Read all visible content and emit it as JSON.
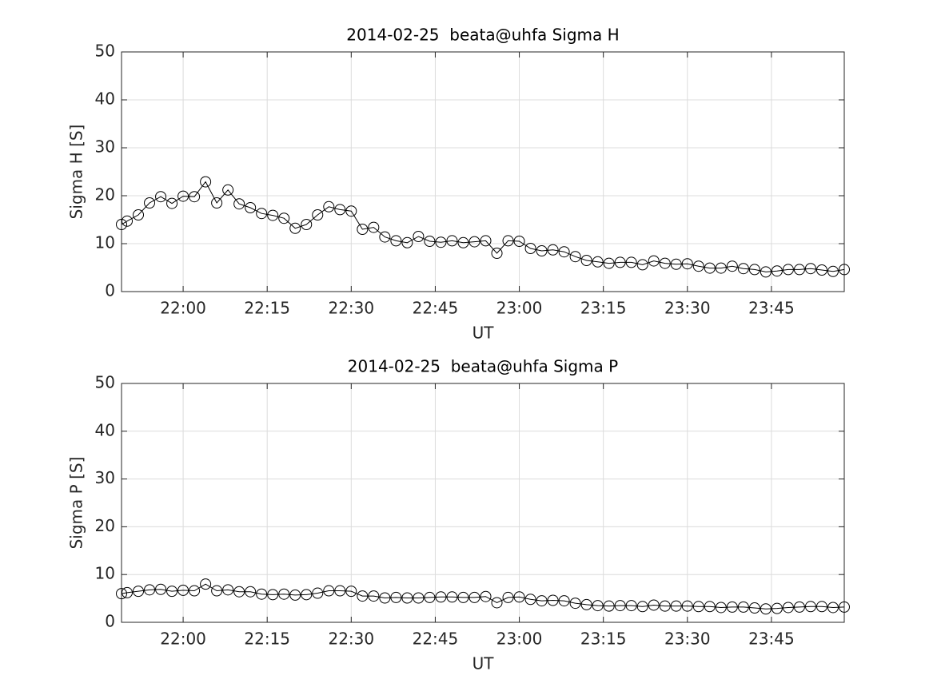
{
  "chart_data": [
    {
      "type": "line",
      "title": "2014-02-25  beata@uhfa Sigma H",
      "ylabel": "Sigma H [S]",
      "xlabel": "UT",
      "x": [
        "21:49",
        "21:50",
        "21:52",
        "21:54",
        "21:56",
        "21:58",
        "22:00",
        "22:02",
        "22:04",
        "22:06",
        "22:08",
        "22:10",
        "22:12",
        "22:14",
        "22:16",
        "22:18",
        "22:20",
        "22:22",
        "22:24",
        "22:26",
        "22:28",
        "22:30",
        "22:32",
        "22:34",
        "22:36",
        "22:38",
        "22:40",
        "22:42",
        "22:44",
        "22:46",
        "22:48",
        "22:50",
        "22:52",
        "22:54",
        "22:56",
        "22:58",
        "23:00",
        "23:02",
        "23:04",
        "23:06",
        "23:08",
        "23:10",
        "23:12",
        "23:14",
        "23:16",
        "23:18",
        "23:20",
        "23:22",
        "23:24",
        "23:26",
        "23:28",
        "23:30",
        "23:32",
        "23:34",
        "23:36",
        "23:38",
        "23:40",
        "23:42",
        "23:44",
        "23:46",
        "23:48",
        "23:50",
        "23:52",
        "23:54",
        "23:56",
        "23:58"
      ],
      "series": [
        {
          "color": "#000000",
          "marker": "o",
          "values": [
            14.0,
            14.7,
            16.0,
            18.5,
            19.8,
            18.4,
            19.9,
            19.8,
            22.9,
            18.5,
            21.2,
            18.3,
            17.5,
            16.3,
            15.9,
            15.3,
            13.2,
            14.0,
            16.0,
            17.7,
            17.1,
            16.8,
            13.0,
            13.4,
            11.4,
            10.6,
            10.2,
            11.5,
            10.5,
            10.3,
            10.6,
            10.2,
            10.4,
            10.6,
            8.0,
            10.6,
            10.5,
            9.0,
            8.5,
            8.7,
            8.3,
            7.3,
            6.5,
            6.2,
            5.9,
            6.1,
            6.1,
            5.6,
            6.4,
            5.9,
            5.7,
            5.8,
            5.3,
            4.9,
            4.9,
            5.3,
            4.8,
            4.6,
            4.1,
            4.3,
            4.6,
            4.6,
            4.8,
            4.5,
            4.2,
            4.6
          ]
        }
      ],
      "xlim": [
        "21:49",
        "23:58"
      ],
      "xticks": [
        "22:00",
        "22:15",
        "22:30",
        "22:45",
        "23:00",
        "23:15",
        "23:30",
        "23:45"
      ],
      "ylim": [
        0,
        50
      ],
      "yticks": [
        0,
        10,
        20,
        30,
        40,
        50
      ],
      "grid": true
    },
    {
      "type": "line",
      "title": "2014-02-25  beata@uhfa Sigma P",
      "ylabel": "Sigma P [S]",
      "xlabel": "UT",
      "x": [
        "21:49",
        "21:50",
        "21:52",
        "21:54",
        "21:56",
        "21:58",
        "22:00",
        "22:02",
        "22:04",
        "22:06",
        "22:08",
        "22:10",
        "22:12",
        "22:14",
        "22:16",
        "22:18",
        "22:20",
        "22:22",
        "22:24",
        "22:26",
        "22:28",
        "22:30",
        "22:32",
        "22:34",
        "22:36",
        "22:38",
        "22:40",
        "22:42",
        "22:44",
        "22:46",
        "22:48",
        "22:50",
        "22:52",
        "22:54",
        "22:56",
        "22:58",
        "23:00",
        "23:02",
        "23:04",
        "23:06",
        "23:08",
        "23:10",
        "23:12",
        "23:14",
        "23:16",
        "23:18",
        "23:20",
        "23:22",
        "23:24",
        "23:26",
        "23:28",
        "23:30",
        "23:32",
        "23:34",
        "23:36",
        "23:38",
        "23:40",
        "23:42",
        "23:44",
        "23:46",
        "23:48",
        "23:50",
        "23:52",
        "23:54",
        "23:56",
        "23:58"
      ],
      "series": [
        {
          "color": "#000000",
          "marker": "o",
          "values": [
            6.0,
            6.2,
            6.5,
            6.8,
            6.9,
            6.5,
            6.7,
            6.6,
            8.0,
            6.6,
            6.8,
            6.4,
            6.4,
            5.9,
            5.8,
            5.9,
            5.7,
            5.8,
            6.1,
            6.6,
            6.6,
            6.5,
            5.5,
            5.5,
            5.1,
            5.2,
            5.1,
            5.1,
            5.2,
            5.3,
            5.3,
            5.2,
            5.2,
            5.4,
            4.1,
            5.2,
            5.3,
            4.8,
            4.5,
            4.6,
            4.5,
            4.0,
            3.7,
            3.5,
            3.4,
            3.5,
            3.5,
            3.3,
            3.6,
            3.4,
            3.4,
            3.4,
            3.3,
            3.3,
            3.1,
            3.2,
            3.2,
            3.0,
            2.8,
            2.9,
            3.1,
            3.2,
            3.3,
            3.3,
            3.1,
            3.2
          ]
        }
      ],
      "xlim": [
        "21:49",
        "23:58"
      ],
      "xticks": [
        "22:00",
        "22:15",
        "22:30",
        "22:45",
        "23:00",
        "23:15",
        "23:30",
        "23:45"
      ],
      "ylim": [
        0,
        50
      ],
      "yticks": [
        0,
        10,
        20,
        30,
        40,
        50
      ],
      "grid": true
    }
  ]
}
